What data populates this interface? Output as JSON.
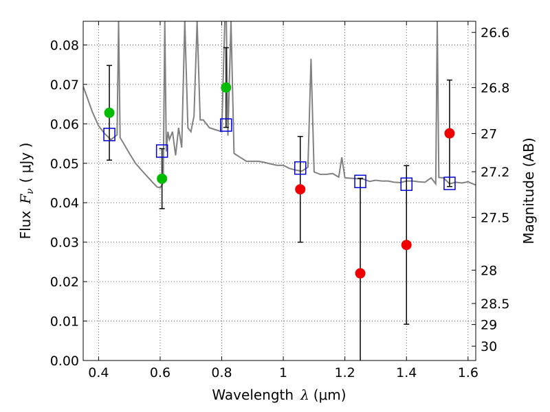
{
  "chart_data": {
    "type": "scatter",
    "xlabel_prefix": "Wavelength",
    "xlabel_symbol": "λ",
    "xlabel_unit": "(μm)",
    "ylabel_prefix": "Flux",
    "ylabel_symbol": "F",
    "ylabel_subscript": "ν",
    "ylabel_unit": "( μJy )",
    "y2label": "Magnitude (AB)",
    "xlim": [
      0.35,
      1.625
    ],
    "ylim": [
      0,
      0.086
    ],
    "grid": true,
    "x_ticks": [
      0.4,
      0.6,
      0.8,
      1.0,
      1.2,
      1.4,
      1.6
    ],
    "x_tick_labels": [
      "0.4",
      "0.6",
      "0.8",
      "1",
      "1.2",
      "1.4",
      "1.6"
    ],
    "y_ticks": [
      0.0,
      0.01,
      0.02,
      0.03,
      0.04,
      0.05,
      0.06,
      0.07,
      0.08
    ],
    "y_tick_labels": [
      "0.00",
      "0.01",
      "0.02",
      "0.03",
      "0.04",
      "0.05",
      "0.06",
      "0.07",
      "0.08"
    ],
    "y2_ticks": [
      26.6,
      26.8,
      27.0,
      27.2,
      27.5,
      28.0,
      28.5,
      29.0,
      30.0
    ],
    "y2_tick_labels": [
      "26.6",
      "26.8",
      "27",
      "27.2",
      "27.5",
      "28",
      "28.5",
      "29",
      "30"
    ],
    "colors": {
      "model": "#808080",
      "detection": "#00bb00",
      "upper": "#ee0000",
      "model_flux": "#0000dd",
      "errorbar": "#000000"
    },
    "points": [
      {
        "x": 0.435,
        "y": 0.0628,
        "err": 0.012,
        "kind": "detection",
        "model": 0.0573
      },
      {
        "x": 0.606,
        "y": 0.0461,
        "err": 0.0076,
        "kind": "detection",
        "model": 0.0531
      },
      {
        "x": 0.814,
        "y": 0.0692,
        "err": 0.0101,
        "kind": "detection",
        "model": 0.0597
      },
      {
        "x": 1.055,
        "y": 0.0434,
        "err": 0.0134,
        "kind": "upper",
        "model": 0.0488
      },
      {
        "x": 1.25,
        "y": 0.0221,
        "err": 0.0241,
        "kind": "upper",
        "model": 0.0454
      },
      {
        "x": 1.4,
        "y": 0.0293,
        "err": 0.0201,
        "kind": "upper",
        "model": 0.0447
      },
      {
        "x": 1.54,
        "y": 0.0576,
        "err": 0.0135,
        "kind": "upper",
        "model": 0.0449
      }
    ],
    "model_spectrum": {
      "x": [
        0.35,
        0.38,
        0.4,
        0.42,
        0.44,
        0.46,
        0.465,
        0.47,
        0.48,
        0.5,
        0.52,
        0.54,
        0.56,
        0.58,
        0.59,
        0.6,
        0.61,
        0.615,
        0.62,
        0.625,
        0.63,
        0.64,
        0.65,
        0.66,
        0.67,
        0.68,
        0.69,
        0.7,
        0.71,
        0.72,
        0.73,
        0.74,
        0.76,
        0.78,
        0.8,
        0.81,
        0.815,
        0.82,
        0.83,
        0.84,
        0.86,
        0.88,
        0.9,
        0.92,
        0.94,
        0.96,
        0.98,
        1.0,
        1.02,
        1.04,
        1.06,
        1.08,
        1.09,
        1.1,
        1.12,
        1.14,
        1.16,
        1.18,
        1.19,
        1.2,
        1.22,
        1.24,
        1.26,
        1.28,
        1.3,
        1.32,
        1.34,
        1.36,
        1.38,
        1.4,
        1.42,
        1.44,
        1.46,
        1.48,
        1.495,
        1.5,
        1.505,
        1.52,
        1.54,
        1.56,
        1.58,
        1.6,
        1.625
      ],
      "y": [
        0.0695,
        0.063,
        0.0595,
        0.0575,
        0.056,
        0.0572,
        0.086,
        0.0565,
        0.0552,
        0.0525,
        0.05,
        0.0482,
        0.0465,
        0.0448,
        0.044,
        0.0438,
        0.045,
        0.086,
        0.053,
        0.058,
        0.056,
        0.058,
        0.052,
        0.059,
        0.054,
        0.086,
        0.059,
        0.058,
        0.062,
        0.086,
        0.061,
        0.061,
        0.059,
        0.0585,
        0.058,
        0.086,
        0.086,
        0.057,
        0.086,
        0.0525,
        0.0515,
        0.0505,
        0.0505,
        0.0505,
        0.0502,
        0.0498,
        0.0495,
        0.0495,
        0.0487,
        0.0483,
        0.048,
        0.049,
        0.0765,
        0.0478,
        0.0472,
        0.0472,
        0.0474,
        0.0465,
        0.0515,
        0.0463,
        0.0462,
        0.0461,
        0.046,
        0.0454,
        0.0457,
        0.0455,
        0.0455,
        0.0452,
        0.0451,
        0.0455,
        0.0455,
        0.0453,
        0.0452,
        0.0463,
        0.0448,
        0.086,
        0.0464,
        0.0463,
        0.0448,
        0.0452,
        0.045,
        0.0453,
        0.0445
      ]
    }
  }
}
